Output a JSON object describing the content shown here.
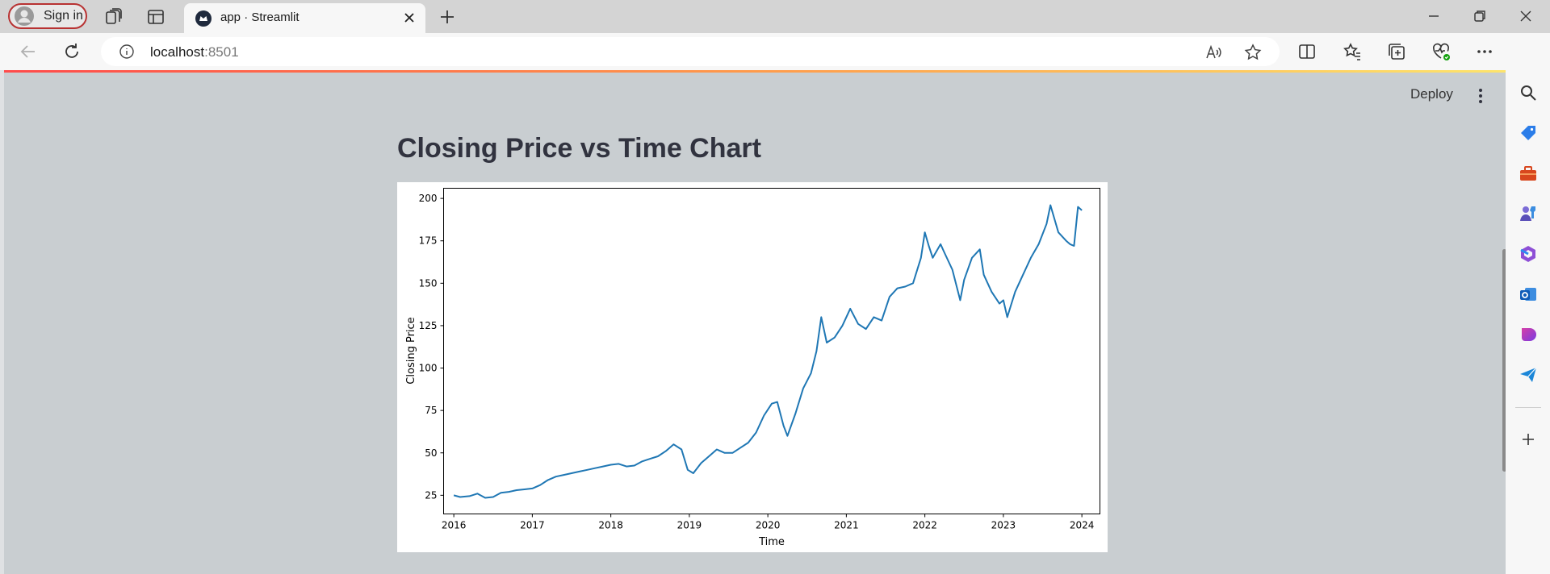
{
  "browser": {
    "signin_label": "Sign in",
    "tab_title": "app · Streamlit",
    "url_host": "localhost",
    "url_port": ":8501"
  },
  "icons": {
    "tabbar": [
      "profile-avatar-icon",
      "workspaces-icon",
      "tab-actions-icon",
      "streamlit-favicon",
      "close-tab-icon",
      "new-tab-icon",
      "minimize-icon",
      "restore-icon",
      "close-window-icon"
    ],
    "toolbar": [
      "back-icon",
      "refresh-icon",
      "site-info-icon",
      "read-aloud-icon",
      "favorite-star-icon",
      "split-screen-icon",
      "favorites-icon",
      "collections-icon",
      "browser-essentials-icon",
      "more-icon",
      "copilot-icon"
    ],
    "sidebar": [
      "search-icon",
      "shopping-tag-icon",
      "tools-icon",
      "games-icon",
      "microsoft-365-icon",
      "outlook-icon",
      "designer-icon",
      "send-icon",
      "add-icon"
    ]
  },
  "app": {
    "deploy_label": "Deploy",
    "heading": "Closing Price vs Time Chart",
    "accent": "#ff4b4b"
  },
  "chart_data": {
    "type": "line",
    "title": "",
    "xlabel": "Time",
    "ylabel": "Closing Price",
    "xlim": [
      2015.87,
      2024.23
    ],
    "ylim": [
      14,
      206
    ],
    "xticks": [
      "2016",
      "2017",
      "2018",
      "2019",
      "2020",
      "2021",
      "2022",
      "2023",
      "2024"
    ],
    "yticks": [
      25,
      50,
      75,
      100,
      125,
      150,
      175,
      200
    ],
    "color": "#1f77b4",
    "series": [
      {
        "x": [
          2016.0,
          2016.08,
          2016.2,
          2016.3,
          2016.4,
          2016.5,
          2016.6,
          2016.7,
          2016.8,
          2016.9,
          2017.0,
          2017.1,
          2017.2,
          2017.3,
          2017.4,
          2017.5,
          2017.6,
          2017.7,
          2017.8,
          2017.9,
          2018.0,
          2018.1,
          2018.2,
          2018.3,
          2018.4,
          2018.5,
          2018.6,
          2018.7,
          2018.75,
          2018.8,
          2018.9,
          2018.98,
          2019.05,
          2019.15,
          2019.25,
          2019.35,
          2019.45,
          2019.55,
          2019.65,
          2019.75,
          2019.85,
          2019.95,
          2020.05,
          2020.12,
          2020.2,
          2020.25,
          2020.35,
          2020.45,
          2020.55,
          2020.62,
          2020.68,
          2020.75,
          2020.85,
          2020.95,
          2021.05,
          2021.15,
          2021.25,
          2021.35,
          2021.45,
          2021.55,
          2021.65,
          2021.75,
          2021.85,
          2021.95,
          2022.0,
          2022.05,
          2022.1,
          2022.2,
          2022.25,
          2022.35,
          2022.45,
          2022.5,
          2022.6,
          2022.7,
          2022.75,
          2022.85,
          2022.95,
          2023.0,
          2023.05,
          2023.15,
          2023.25,
          2023.35,
          2023.45,
          2023.55,
          2023.6,
          2023.7,
          2023.8,
          2023.85,
          2023.9,
          2023.95,
          2024.0
        ],
        "y": [
          25,
          24,
          24.5,
          26,
          23.5,
          24,
          26.5,
          27,
          28,
          28.5,
          29,
          31,
          34,
          36,
          37,
          38,
          39,
          40,
          41,
          42,
          43,
          43.5,
          42,
          42.5,
          45,
          46.5,
          48,
          51,
          53,
          55,
          52,
          40,
          38,
          44,
          48,
          52,
          50,
          50,
          53,
          56,
          62,
          72,
          79,
          80,
          66,
          60,
          73,
          88,
          97,
          110,
          130,
          115,
          118,
          125,
          135,
          126,
          123,
          130,
          128,
          142,
          147,
          148,
          150,
          165,
          180,
          172,
          165,
          173,
          168,
          158,
          140,
          152,
          165,
          170,
          155,
          145,
          138,
          140,
          130,
          145,
          155,
          165,
          173,
          185,
          196,
          180,
          175,
          173,
          172,
          195,
          193
        ]
      }
    ]
  }
}
